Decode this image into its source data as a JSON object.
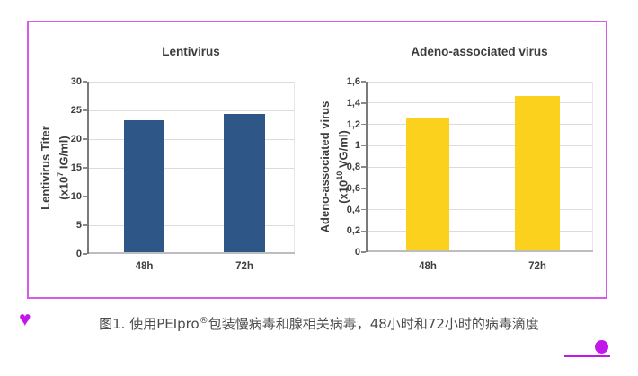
{
  "figure": {
    "caption": {
      "prefix": "图1. 使用PEIpro",
      "sup": "®",
      "suffix": "包装慢病毒和腺相关病毒，48小时和72小时的病毒滴度"
    }
  },
  "decor": {
    "heart_icon": "♥",
    "accent_color": "#c117e8",
    "border_color": "#d55be8"
  },
  "chart_data": [
    {
      "type": "bar",
      "title": "Lentivirus",
      "categories": [
        "48h",
        "72h"
      ],
      "values": [
        23,
        24
      ],
      "ylabel_line1": "Lentivirus Titer",
      "ylabel2": {
        "prefix": "(x10",
        "sup": "7",
        "suffix": " IG/ml)"
      },
      "xlabel": "",
      "ylim": [
        0,
        30
      ],
      "yticks": [
        "30",
        "25",
        "20",
        "15",
        "10",
        "5",
        "0"
      ],
      "bar_color": "#2e5787",
      "grid": true,
      "legend_position": "none"
    },
    {
      "type": "bar",
      "title": "Adeno-associated virus",
      "categories": [
        "48h",
        "72h"
      ],
      "values": [
        1.25,
        1.45
      ],
      "ylabel_line1": "Adeno-associated virus",
      "ylabel2": {
        "prefix": "(x10",
        "sup": "10",
        "suffix": " VG/ml)"
      },
      "xlabel": "",
      "ylim": [
        0,
        1.6
      ],
      "yticks": [
        "1,6",
        "1,4",
        "1,2",
        "1",
        "0,8",
        "0,6",
        "0,4",
        "0,2",
        "0"
      ],
      "bar_color": "#fbd11e",
      "grid": true,
      "legend_position": "none"
    }
  ]
}
